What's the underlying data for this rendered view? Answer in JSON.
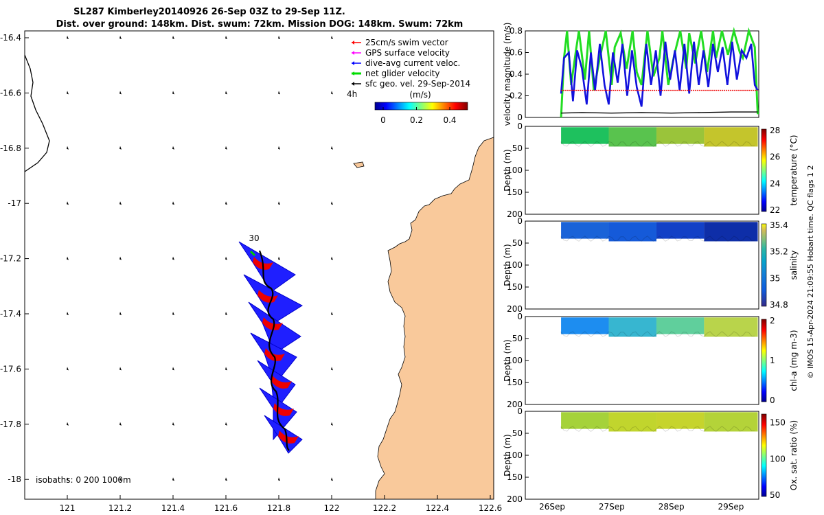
{
  "title": {
    "line1": "SL287 Kimberley20140926 26-Sep 03Z to 29-Sep 11Z.",
    "line2": "Dist. over ground: 148km. Dist. swum: 72km. Mission DOG: 148km. Swum: 72km"
  },
  "map": {
    "lon_ticks": [
      "121",
      "121.2",
      "121.4",
      "121.6",
      "121.8",
      "122",
      "122.2",
      "122.4",
      "122.6"
    ],
    "lat_ticks": [
      "-16.4",
      "-16.6",
      "-16.8",
      "-17",
      "-17.2",
      "-17.4",
      "-17.6",
      "-17.8",
      "-18"
    ],
    "legend": [
      {
        "label": "25cm/s swim vector",
        "color": "#ff0000"
      },
      {
        "label": "GPS surface velocity",
        "color": "#ff00ff"
      },
      {
        "label": "dive-avg current veloc.",
        "color": "#0000ff"
      },
      {
        "label": "net glider velocity",
        "color": "#00dd00"
      },
      {
        "label": "sfc geo. vel. 29-Sep-2014",
        "color": "#000000"
      }
    ],
    "legend_extra": "4h",
    "colorbar": {
      "label": "(m/s)",
      "ticks": [
        "0",
        "0.2",
        "0.4"
      ]
    },
    "day_label": "30",
    "isobaths": "isobaths: 0   200  1000m",
    "land_color": "#f9c99b"
  },
  "chart_data": [
    {
      "type": "line",
      "title": "",
      "ylabel": "velocity magnitude (m/s)",
      "xlabel": "",
      "x_ticks": [
        "26Sep",
        "27Sep",
        "28Sep",
        "29Sep"
      ],
      "ylim": [
        0,
        0.8
      ],
      "y_ticks": [
        "0",
        "0.2",
        "0.4",
        "0.6",
        "0.8"
      ],
      "series": [
        {
          "color": "#22dd22",
          "x": [
            26.15,
            26.2,
            26.25,
            26.32,
            26.4,
            26.45,
            26.55,
            26.62,
            26.7,
            26.8,
            26.9,
            27.0,
            27.05,
            27.15,
            27.25,
            27.35,
            27.42,
            27.5,
            27.6,
            27.7,
            27.8,
            27.85,
            27.95,
            28.05,
            28.15,
            28.25,
            28.3,
            28.4,
            28.5,
            28.6,
            28.7,
            28.75,
            28.85,
            28.95,
            29.05,
            29.15,
            29.2,
            29.3,
            29.4,
            29.45
          ],
          "values": [
            0.0,
            0.55,
            0.8,
            0.3,
            0.62,
            0.8,
            0.35,
            0.8,
            0.25,
            0.55,
            0.8,
            0.3,
            0.65,
            0.78,
            0.45,
            0.8,
            0.42,
            0.3,
            0.8,
            0.38,
            0.55,
            0.8,
            0.3,
            0.58,
            0.8,
            0.45,
            0.78,
            0.5,
            0.8,
            0.42,
            0.8,
            0.55,
            0.8,
            0.58,
            0.8,
            0.6,
            0.55,
            0.8,
            0.65,
            0.03
          ]
        },
        {
          "color": "#1111dd",
          "x": [
            26.15,
            26.2,
            26.28,
            26.35,
            26.42,
            26.5,
            26.58,
            26.65,
            26.72,
            26.8,
            26.88,
            26.95,
            27.02,
            27.1,
            27.18,
            27.26,
            27.34,
            27.42,
            27.5,
            27.58,
            27.66,
            27.74,
            27.82,
            27.9,
            27.98,
            28.06,
            28.14,
            28.22,
            28.3,
            28.38,
            28.46,
            28.54,
            28.62,
            28.7,
            28.78,
            28.86,
            28.94,
            29.02,
            29.1,
            29.18,
            29.26,
            29.34,
            29.4,
            29.45
          ],
          "values": [
            0.22,
            0.55,
            0.6,
            0.15,
            0.62,
            0.45,
            0.12,
            0.6,
            0.25,
            0.68,
            0.3,
            0.12,
            0.6,
            0.32,
            0.68,
            0.2,
            0.62,
            0.28,
            0.1,
            0.68,
            0.3,
            0.62,
            0.2,
            0.7,
            0.35,
            0.62,
            0.25,
            0.68,
            0.22,
            0.7,
            0.3,
            0.62,
            0.28,
            0.68,
            0.42,
            0.65,
            0.3,
            0.7,
            0.35,
            0.62,
            0.55,
            0.68,
            0.3,
            0.25
          ]
        },
        {
          "color": "#ee0000",
          "x": [
            26.15,
            29.45
          ],
          "values": [
            0.25,
            0.25
          ]
        },
        {
          "color": "#000000",
          "x": [
            26.15,
            26.5,
            27.0,
            27.5,
            28.0,
            28.5,
            29.0,
            29.45
          ],
          "values": [
            0.04,
            0.045,
            0.04,
            0.045,
            0.04,
            0.045,
            0.05,
            0.05
          ]
        }
      ]
    },
    {
      "type": "heatmap",
      "ylabel": "Depth (m)",
      "cbar_label": "temperature (°C)",
      "cbar_ticks": [
        "22",
        "24",
        "26",
        "28"
      ],
      "ylim": [
        200,
        0
      ],
      "y_ticks": [
        "0",
        "50",
        "100",
        "150",
        "200"
      ],
      "values": [
        {
          "x": 26.2,
          "depth": 20,
          "value": 24.2
        },
        {
          "x": 27.0,
          "depth": 20,
          "value": 24.8
        },
        {
          "x": 28.0,
          "depth": 20,
          "value": 25.6
        },
        {
          "x": 29.0,
          "depth": 20,
          "value": 25.8
        },
        {
          "x": 26.2,
          "depth": 40,
          "value": 24.0
        },
        {
          "x": 28.0,
          "depth": 40,
          "value": 25.4
        }
      ]
    },
    {
      "type": "heatmap",
      "ylabel": "Depth (m)",
      "cbar_label": "salinity",
      "cbar_ticks": [
        "34.8",
        "35",
        "35.2",
        "35.4"
      ],
      "ylim": [
        200,
        0
      ],
      "y_ticks": [
        "0",
        "50",
        "100",
        "150",
        "200"
      ],
      "values": [
        {
          "x": 26.2,
          "depth": 20,
          "value": 34.82
        },
        {
          "x": 27.5,
          "depth": 20,
          "value": 34.78
        },
        {
          "x": 29.0,
          "depth": 20,
          "value": 34.72
        }
      ]
    },
    {
      "type": "heatmap",
      "ylabel": "Depth (m)",
      "cbar_label": "chl-a (mg m-3)",
      "cbar_ticks": [
        "0",
        "1",
        "2"
      ],
      "ylim": [
        200,
        0
      ],
      "y_ticks": [
        "0",
        "50",
        "100",
        "150",
        "200"
      ],
      "values": [
        {
          "x": 26.5,
          "depth": 20,
          "value": 0.5
        },
        {
          "x": 27.5,
          "depth": 20,
          "value": 0.6
        },
        {
          "x": 29.0,
          "depth": 20,
          "value": 1.4
        }
      ]
    },
    {
      "type": "heatmap",
      "ylabel": "Depth (m)",
      "cbar_label": "Ox. sat. ratio (%)",
      "cbar_ticks": [
        "50",
        "100",
        "150"
      ],
      "ylim": [
        200,
        0
      ],
      "y_ticks": [
        "0",
        "50",
        "100",
        "150",
        "200"
      ],
      "values": [
        {
          "x": 26.5,
          "depth": 20,
          "value": 125
        },
        {
          "x": 28.0,
          "depth": 20,
          "value": 128
        },
        {
          "x": 29.0,
          "depth": 20,
          "value": 126
        }
      ]
    }
  ],
  "footer": "© IMOS 15-Apr-2024 21:09:55 Hobart time. QC flags 1  2"
}
